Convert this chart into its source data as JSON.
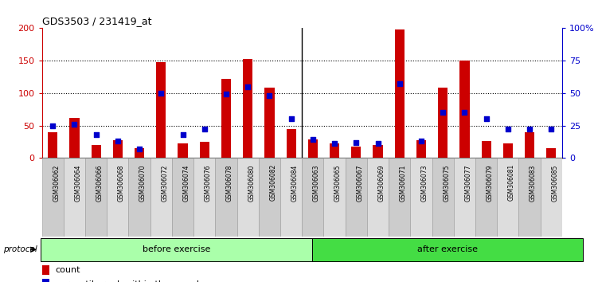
{
  "title": "GDS3503 / 231419_at",
  "categories": [
    "GSM306062",
    "GSM306064",
    "GSM306066",
    "GSM306068",
    "GSM306070",
    "GSM306072",
    "GSM306074",
    "GSM306076",
    "GSM306078",
    "GSM306080",
    "GSM306082",
    "GSM306084",
    "GSM306063",
    "GSM306065",
    "GSM306067",
    "GSM306069",
    "GSM306071",
    "GSM306073",
    "GSM306075",
    "GSM306077",
    "GSM306079",
    "GSM306081",
    "GSM306083",
    "GSM306085"
  ],
  "count_values": [
    40,
    62,
    20,
    27,
    15,
    148,
    22,
    25,
    122,
    153,
    108,
    45,
    28,
    22,
    18,
    20,
    198,
    27,
    108,
    150,
    26,
    22,
    40,
    15
  ],
  "percentile_values": [
    25,
    26,
    18,
    13,
    7,
    50,
    18,
    22,
    49,
    55,
    48,
    30,
    14,
    11,
    12,
    11,
    57,
    13,
    35,
    35,
    30,
    22,
    22,
    22
  ],
  "before_exercise_count": 12,
  "after_exercise_count": 12,
  "bar_color_red": "#CC0000",
  "bar_color_blue": "#0000CC",
  "before_bg": "#AAFFAA",
  "after_bg": "#44DD44",
  "yticks_left": [
    0,
    50,
    100,
    150,
    200
  ],
  "yticks_right": [
    0,
    25,
    50,
    75,
    100
  ],
  "ytick_labels_right": [
    "0",
    "25",
    "50",
    "75",
    "100%"
  ]
}
